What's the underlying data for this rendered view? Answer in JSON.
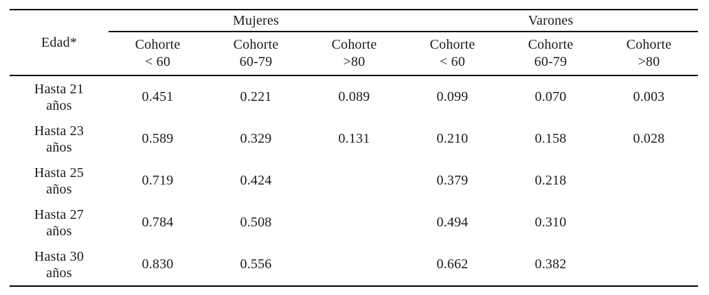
{
  "table": {
    "corner_header": "Edad*",
    "group_headers": [
      {
        "label": "Mujeres"
      },
      {
        "label": "Varones"
      }
    ],
    "sub_headers": [
      {
        "line1": "Cohorte",
        "line2": "< 60"
      },
      {
        "line1": "Cohorte",
        "line2": "60-79"
      },
      {
        "line1": "Cohorte",
        "line2": ">80"
      },
      {
        "line1": "Cohorte",
        "line2": "< 60"
      },
      {
        "line1": "Cohorte",
        "line2": "60-79"
      },
      {
        "line1": "Cohorte",
        "line2": ">80"
      }
    ],
    "rows": [
      {
        "label_line1": "Hasta 21",
        "label_line2": "años",
        "values": [
          "0.451",
          "0.221",
          "0.089",
          "0.099",
          "0.070",
          "0.003"
        ]
      },
      {
        "label_line1": "Hasta 23",
        "label_line2": "años",
        "values": [
          "0.589",
          "0.329",
          "0.131",
          "0.210",
          "0.158",
          "0.028"
        ]
      },
      {
        "label_line1": "Hasta 25",
        "label_line2": "años",
        "values": [
          "0.719",
          "0.424",
          "",
          "0.379",
          "0.218",
          ""
        ]
      },
      {
        "label_line1": "Hasta 27",
        "label_line2": "años",
        "values": [
          "0.784",
          "0.508",
          "",
          "0.494",
          "0.310",
          ""
        ]
      },
      {
        "label_line1": "Hasta 30",
        "label_line2": "años",
        "values": [
          "0.830",
          "0.556",
          "",
          "0.662",
          "0.382",
          ""
        ]
      }
    ],
    "colors": {
      "text": "#1b1b1b",
      "rule": "#000000",
      "background": "#ffffff"
    }
  },
  "chart_data": {
    "type": "table",
    "title": "",
    "row_header": "Edad*",
    "column_groups": [
      "Mujeres",
      "Varones"
    ],
    "columns": [
      "Cohorte < 60",
      "Cohorte 60-79",
      "Cohorte >80",
      "Cohorte < 60",
      "Cohorte 60-79",
      "Cohorte >80"
    ],
    "row_labels": [
      "Hasta 21 años",
      "Hasta 23 años",
      "Hasta 25 años",
      "Hasta 27 años",
      "Hasta 30 años"
    ],
    "values": [
      [
        0.451,
        0.221,
        0.089,
        0.099,
        0.07,
        0.003
      ],
      [
        0.589,
        0.329,
        0.131,
        0.21,
        0.158,
        0.028
      ],
      [
        0.719,
        0.424,
        null,
        0.379,
        0.218,
        null
      ],
      [
        0.784,
        0.508,
        null,
        0.494,
        0.31,
        null
      ],
      [
        0.83,
        0.556,
        null,
        0.662,
        0.382,
        null
      ]
    ]
  }
}
